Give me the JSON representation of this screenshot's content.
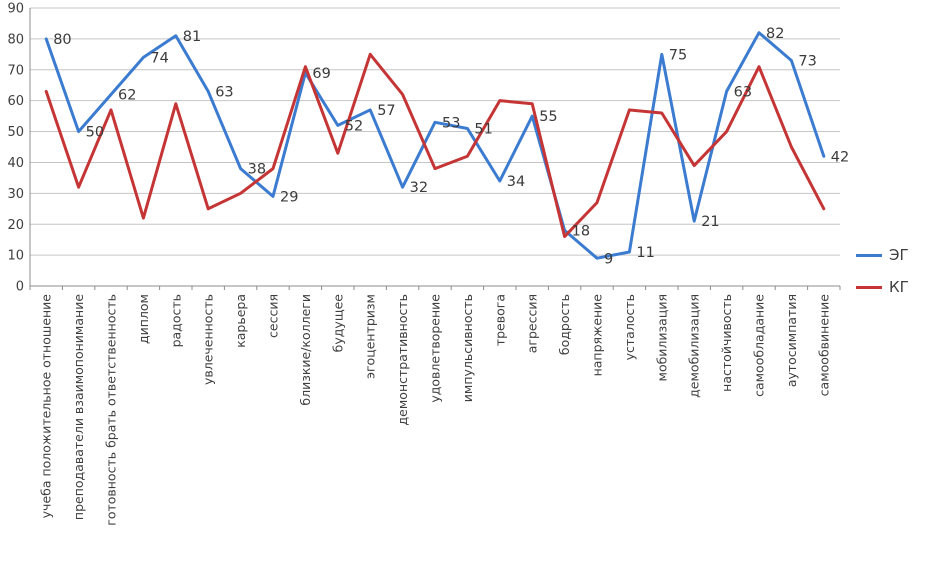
{
  "chart_data": {
    "type": "line",
    "title": "",
    "xlabel": "",
    "ylabel": "",
    "ylim": [
      0,
      90
    ],
    "yticks": [
      0,
      10,
      20,
      30,
      40,
      50,
      60,
      70,
      80,
      90
    ],
    "grid": true,
    "legend_position": "right",
    "categories": [
      "учеба положительное отношение",
      "преподаватели взаимопонимание",
      "готовность брать ответственность",
      "диплом",
      "радость",
      "увлеченность",
      "карьера",
      "сессия",
      "близкие/коллеги",
      "будущее",
      "эгоцентризм",
      "демонстративность",
      "удовлетворение",
      "импульсивность",
      "тревога",
      "агрессия",
      "бодрость",
      "напряжение",
      "усталость",
      "мобилизация",
      "демобилизация",
      "настойчивость",
      "самообладание",
      "аутосимпатия",
      "самообвинение"
    ],
    "series": [
      {
        "name": "ЭГ",
        "color": "#3b7bd0",
        "show_labels": true,
        "values": [
          80,
          50,
          62,
          74,
          81,
          63,
          38,
          29,
          69,
          52,
          57,
          32,
          53,
          51,
          34,
          55,
          18,
          9,
          11,
          75,
          21,
          63,
          82,
          73,
          42
        ]
      },
      {
        "name": "КГ",
        "color": "#c53535",
        "show_labels": false,
        "values": [
          63,
          32,
          57,
          22,
          59,
          25,
          30,
          38,
          71,
          43,
          75,
          62,
          38,
          42,
          60,
          59,
          16,
          27,
          57,
          56,
          39,
          50,
          71,
          45,
          25
        ]
      }
    ],
    "colors": {
      "gridline": "#c6c6c6",
      "axis": "#8c8c8c",
      "text": "#3f3f3f"
    }
  }
}
